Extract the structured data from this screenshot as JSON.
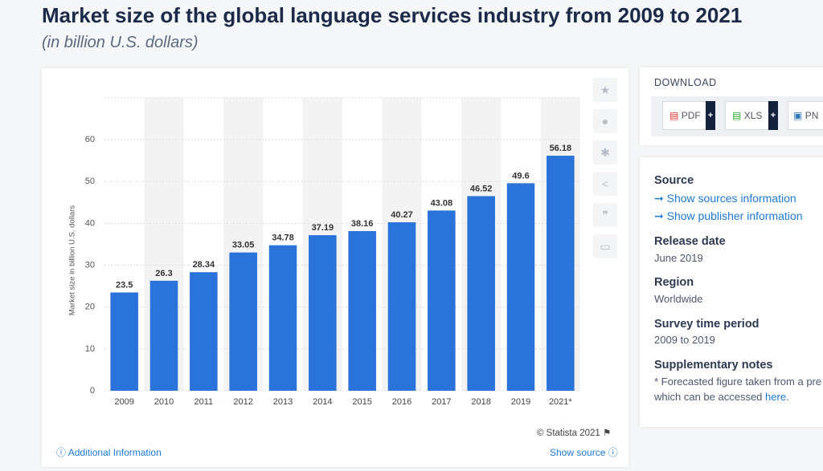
{
  "title": "Market size of the global language services industry from 2009 to 2021",
  "subtitle": "(in billion U.S. dollars)",
  "chart_data": {
    "type": "bar",
    "y_label": "Market size in billion U.S. dollars",
    "categories": [
      "2009",
      "2010",
      "2011",
      "2012",
      "2013",
      "2014",
      "2015",
      "2016",
      "2017",
      "2018",
      "2019",
      "2021*"
    ],
    "values": [
      23.5,
      26.3,
      28.34,
      33.05,
      34.78,
      37.19,
      38.16,
      40.27,
      43.08,
      46.52,
      49.6,
      56.18
    ],
    "color": "#2a73db",
    "ylim": [
      0,
      70
    ],
    "yticks": [
      0,
      10,
      20,
      30,
      40,
      50,
      60
    ],
    "grid": true
  },
  "footer": {
    "credit": "© Statista 2021",
    "additional": "Additional Information",
    "show_source": "Show source"
  },
  "download": {
    "heading": "DOWNLOAD",
    "buttons": [
      "PDF",
      "XLS",
      "PN"
    ]
  },
  "details": {
    "source_heading": "Source",
    "source_link1": "Show sources information",
    "source_link2": "Show publisher information",
    "release_heading": "Release date",
    "release": "June 2019",
    "region_heading": "Region",
    "region": "Worldwide",
    "period_heading": "Survey time period",
    "period": "2009 to 2019",
    "notes_heading": "Supplementary notes",
    "notes_line1": "* Forecasted figure taken from a pre",
    "notes_line2": "which can be accessed",
    "notes_link": "here",
    "notes_end": "."
  }
}
